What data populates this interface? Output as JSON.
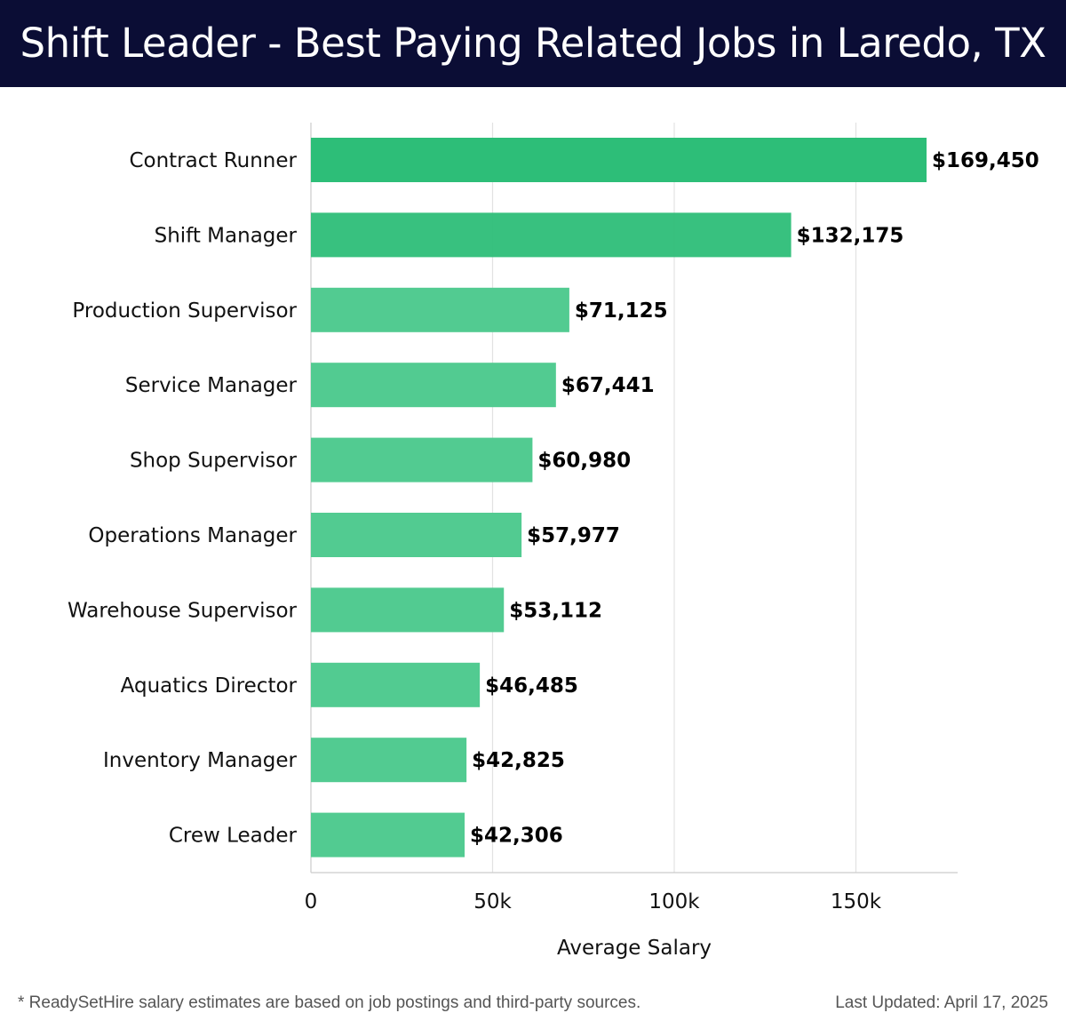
{
  "header": {
    "title": "Shift Leader - Best Paying Related Jobs in Laredo, TX"
  },
  "chart_data": {
    "type": "bar",
    "orientation": "horizontal",
    "title": "Shift Leader - Best Paying Related Jobs in Laredo, TX",
    "xlabel": "Average Salary",
    "ylabel": "",
    "categories": [
      "Contract Runner",
      "Shift Manager",
      "Production Supervisor",
      "Service Manager",
      "Shop Supervisor",
      "Operations Manager",
      "Warehouse Supervisor",
      "Aquatics Director",
      "Inventory Manager",
      "Crew Leader"
    ],
    "values": [
      169450,
      132175,
      71125,
      67441,
      60980,
      57977,
      53112,
      46485,
      42825,
      42306
    ],
    "value_labels": [
      "$169,450",
      "$132,175",
      "$71,125",
      "$67,441",
      "$60,980",
      "$57,977",
      "$53,112",
      "$46,485",
      "$42,825",
      "$42,306"
    ],
    "xlim": [
      0,
      178000
    ],
    "xticks": [
      0,
      50000,
      100000,
      150000
    ],
    "xtick_labels": [
      "0",
      "50k",
      "100k",
      "150k"
    ],
    "grid": "vertical",
    "colors": {
      "bar_top": "#2dbe78",
      "bar": "#52cb91",
      "grid": "#e2e2e2",
      "axis": "#cccccc",
      "header_bg": "#0b0d35"
    }
  },
  "footer": {
    "note": "* ReadySetHire salary estimates are based on job postings and third-party sources.",
    "updated": "Last Updated: April 17, 2025"
  }
}
